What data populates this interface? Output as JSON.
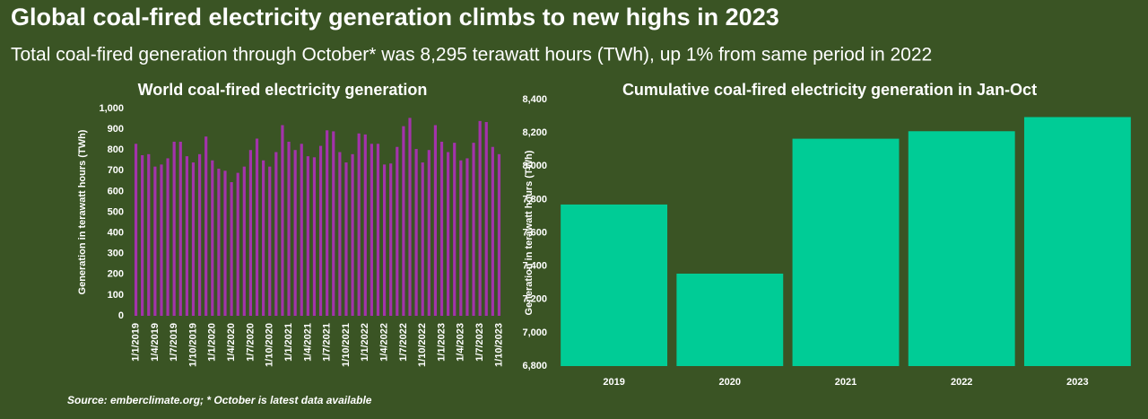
{
  "title": "Global coal-fired electricity generation climbs to new highs in 2023",
  "subtitle": "Total coal-fired generation through October* was 8,295 terawatt hours (TWh), up 1% from same period in 2022",
  "source": "Source: emberclimate.org; * October is latest data available",
  "chart_data": [
    {
      "type": "bar",
      "title": "World coal-fired electricity generation",
      "y_label": "Generation in terawatt hours (TWh)",
      "categories": [
        "1/1/2019",
        null,
        null,
        "1/4/2019",
        null,
        null,
        "1/7/2019",
        null,
        null,
        "1/10/2019",
        null,
        null,
        "1/1/2020",
        null,
        null,
        "1/4/2020",
        null,
        null,
        "1/7/2020",
        null,
        null,
        "1/10/2020",
        null,
        null,
        "1/1/2021",
        null,
        null,
        "1/4/2021",
        null,
        null,
        "1/7/2021",
        null,
        null,
        "1/10/2021",
        null,
        null,
        "1/1/2022",
        null,
        null,
        "1/4/2022",
        null,
        null,
        "1/7/2022",
        null,
        null,
        "1/10/2022",
        null,
        null,
        "1/1/2023",
        null,
        null,
        "1/4/2023",
        null,
        null,
        "1/7/2023",
        null,
        null,
        "1/10/2023"
      ],
      "values": [
        830,
        775,
        780,
        720,
        730,
        760,
        840,
        840,
        770,
        740,
        780,
        865,
        750,
        710,
        700,
        645,
        690,
        720,
        800,
        855,
        750,
        720,
        790,
        920,
        840,
        800,
        830,
        770,
        765,
        820,
        895,
        890,
        790,
        740,
        780,
        880,
        875,
        830,
        830,
        730,
        735,
        815,
        915,
        955,
        805,
        740,
        800,
        920,
        840,
        790,
        835,
        750,
        760,
        835,
        940,
        935,
        815,
        780
      ],
      "color": "#a333ab",
      "ylim": [
        0,
        1000
      ],
      "yticks": [
        0,
        100,
        200,
        300,
        400,
        500,
        600,
        700,
        800,
        900,
        {
          "value": 1000,
          "label": "1,000"
        }
      ],
      "grid": false
    },
    {
      "type": "bar",
      "title": "Cumulative coal-fired electricity generation in Jan-Oct",
      "y_label": "Generation in terawatt hours (TWh)",
      "categories": [
        "2019",
        "2020",
        "2021",
        "2022",
        "2023"
      ],
      "values": [
        7770,
        7355,
        8165,
        8210,
        8295
      ],
      "color": "#00cc96",
      "ylim": [
        6800,
        8400
      ],
      "yticks": [
        {
          "value": 6800,
          "label": "6,800"
        },
        {
          "value": 7000,
          "label": "7,000"
        },
        {
          "value": 7200,
          "label": "7,200"
        },
        {
          "value": 7400,
          "label": "7,400"
        },
        {
          "value": 7600,
          "label": "7,600"
        },
        {
          "value": 7800,
          "label": "7,800"
        },
        {
          "value": 8000,
          "label": "8,000"
        },
        {
          "value": 8200,
          "label": "8,200"
        },
        {
          "value": 8400,
          "label": "8,400"
        }
      ],
      "grid": false
    }
  ]
}
